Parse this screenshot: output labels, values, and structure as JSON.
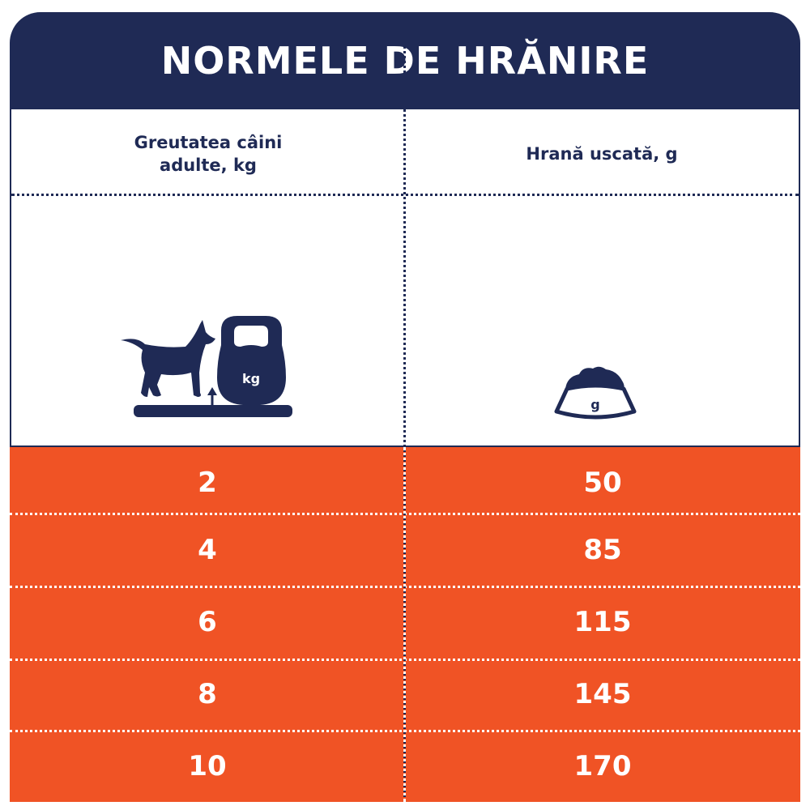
{
  "title": "NORMELE DE HRĂNIRE",
  "columns": [
    "Greutatea câini\nadulte, kg",
    "Hrană uscată, g"
  ],
  "icons": {
    "weight_icon_label": "kg",
    "bowl_icon_label": "g",
    "weight_icon": "dog-on-scale-with-kettlebell-icon",
    "bowl_icon": "food-bowl-icon"
  },
  "rows": [
    {
      "weight": "2",
      "food": "50"
    },
    {
      "weight": "4",
      "food": "85"
    },
    {
      "weight": "6",
      "food": "115"
    },
    {
      "weight": "8",
      "food": "145"
    },
    {
      "weight": "10",
      "food": "170"
    }
  ],
  "colors": {
    "navy": "#1f2a55",
    "orange": "#f05325"
  }
}
